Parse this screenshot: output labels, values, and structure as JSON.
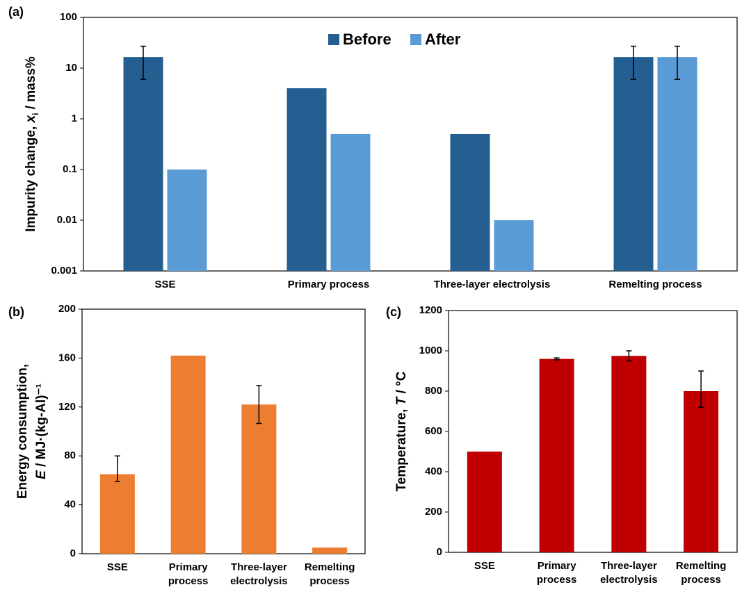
{
  "chart_data": [
    {
      "type": "bar",
      "panel_label": "(a)",
      "log_scale": true,
      "legend": "top-center",
      "y_label": [
        [
          "Impurity change, ",
          "x",
          "i",
          " / mass%"
        ]
      ],
      "categories": [
        [
          "SSE"
        ],
        [
          "Primary process"
        ],
        [
          "Three-layer electrolysis"
        ],
        [
          "Remelting process"
        ]
      ],
      "series": [
        {
          "name": "Before",
          "color": "#255e91",
          "values": [
            16.5,
            4,
            0.5,
            16.5
          ],
          "errors": [
            [
              10.5,
              10.5
            ],
            null,
            null,
            [
              10.5,
              10.5
            ]
          ]
        },
        {
          "name": "After",
          "color": "#5b9bd5",
          "values": [
            0.1,
            0.5,
            0.01,
            16.5
          ],
          "errors": [
            null,
            null,
            null,
            [
              10.5,
              10.5
            ]
          ]
        }
      ],
      "ylim": [
        0.001,
        100
      ],
      "yticks": [
        0.001,
        0.01,
        0.1,
        1,
        10,
        100
      ]
    },
    {
      "type": "bar",
      "panel_label": "(b)",
      "log_scale": false,
      "y_label": [
        [
          "Energy consumption,"
        ],
        [
          "E",
          " / MJ·(kg-Al)⁻¹"
        ]
      ],
      "categories": [
        [
          "SSE"
        ],
        [
          "Primary",
          "process"
        ],
        [
          "Three-layer",
          "electrolysis"
        ],
        [
          "Remelting",
          "process"
        ]
      ],
      "series": [
        {
          "color": "#ed7d31",
          "values": [
            65,
            162,
            122,
            5
          ],
          "errors": [
            [
              6,
              15
            ],
            null,
            [
              15.5,
              15.5
            ],
            null
          ]
        }
      ],
      "ylim": [
        0,
        200
      ],
      "yticks": [
        0,
        40,
        80,
        120,
        160,
        200
      ]
    },
    {
      "type": "bar",
      "panel_label": "(c)",
      "log_scale": false,
      "y_label": [
        [
          "Temperature, ",
          "T",
          " / °C"
        ]
      ],
      "categories": [
        [
          "SSE"
        ],
        [
          "Primary",
          "process"
        ],
        [
          "Three-layer",
          "electrolysis"
        ],
        [
          "Remelting",
          "process"
        ]
      ],
      "series": [
        {
          "color": "#c00000",
          "values": [
            500,
            960,
            975,
            800
          ],
          "errors": [
            null,
            [
              5,
              5
            ],
            [
              25,
              25
            ],
            [
              80,
              100
            ]
          ]
        }
      ],
      "ylim": [
        0,
        1200
      ],
      "yticks": [
        0,
        200,
        400,
        600,
        800,
        1000,
        1200
      ]
    }
  ]
}
